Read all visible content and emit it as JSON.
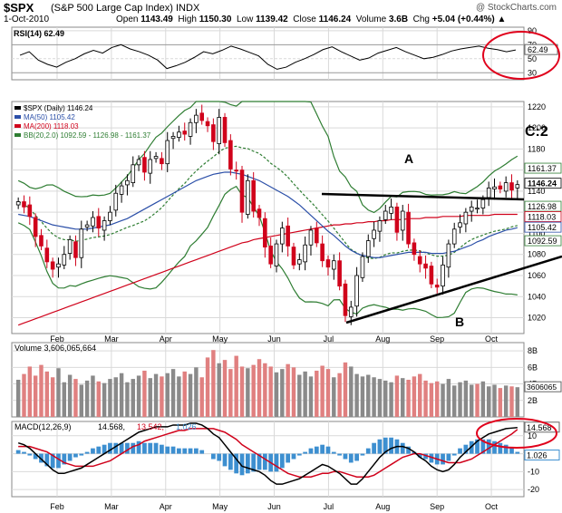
{
  "header": {
    "ticker": "$SPX",
    "full_name": "(S&P 500 Large Cap Index) INDX",
    "site": "@ StockCharts.com",
    "date": "1-Oct-2010",
    "open_label": "Open",
    "open": "1143.49",
    "high_label": "High",
    "high": "1150.30",
    "low_label": "Low",
    "low": "1139.42",
    "close_label": "Close",
    "close": "1146.24",
    "volume_label": "Volume",
    "volume": "3.6B",
    "chg_label": "Chg",
    "chg": "+5.04 (+0.44%)",
    "chg_arrow": "▲"
  },
  "colors": {
    "up": "#000000",
    "down": "#d0021b",
    "ma50": "#2b4fa8",
    "ma200": "#d0021b",
    "bb": "#2e7d32",
    "grid": "#d9d9d9",
    "annot": "#e0001b",
    "macd_hist": "#3d8fd0",
    "vol_up": "#8a8a8a",
    "vol_down": "#e08080"
  },
  "chart_data": [
    {
      "type": "line",
      "title": "RSI(14) 62.49",
      "legend": [
        "RSI(14) 62.49"
      ],
      "y_ticks": [
        "90",
        "70",
        "50",
        "30"
      ],
      "ylim": [
        20,
        95
      ],
      "last_value_label": "62.49",
      "values": [
        55,
        60,
        48,
        42,
        38,
        45,
        50,
        57,
        62,
        58,
        66,
        70,
        64,
        60,
        55,
        48,
        36,
        40,
        45,
        52,
        60,
        57,
        62,
        68,
        64,
        59,
        54,
        42,
        35,
        38,
        45,
        50,
        56,
        63,
        67,
        60,
        54,
        48,
        51,
        58,
        62,
        66,
        60,
        55,
        50,
        52,
        56,
        61,
        64,
        66,
        68,
        65,
        63,
        60,
        62.49
      ]
    },
    {
      "type": "candlestick",
      "title": "$SPX (Daily) 1146.24",
      "legend": [
        "$SPX (Daily) 1146.24",
        "MA(50) 1105.42",
        "MA(200) 1118.03",
        "BB(20,2.0) 1092.59 - 1126.98 - 1161.37"
      ],
      "x_tick_labels": [
        "Feb",
        "Mar",
        "Apr",
        "May",
        "Jun",
        "Jul",
        "Aug",
        "Sep",
        "Oct"
      ],
      "y_ticks": [
        "1220",
        "1200",
        "1180",
        "1160",
        "1140",
        "1120",
        "1100",
        "1080",
        "1060",
        "1040",
        "1020"
      ],
      "ylim": [
        1005,
        1225
      ],
      "price_labels": [
        "1161.37",
        "1146.24",
        "1126.98",
        "1118.03",
        "1105.42",
        "1092.59"
      ],
      "annotations": [
        "A",
        "B",
        "C:2"
      ],
      "close": [
        1130,
        1125,
        1116,
        1097,
        1088,
        1073,
        1066,
        1071,
        1080,
        1094,
        1077,
        1104,
        1108,
        1115,
        1105,
        1112,
        1120,
        1138,
        1145,
        1150,
        1165,
        1170,
        1158,
        1170,
        1173,
        1166,
        1188,
        1192,
        1196,
        1194,
        1205,
        1212,
        1207,
        1202,
        1187,
        1210,
        1186,
        1161,
        1159,
        1120,
        1150,
        1121,
        1115,
        1087,
        1071,
        1090,
        1105,
        1088,
        1070,
        1075,
        1089,
        1103,
        1091,
        1074,
        1068,
        1074,
        1050,
        1022,
        1030,
        1060,
        1078,
        1093,
        1103,
        1112,
        1121,
        1125,
        1101,
        1121,
        1090,
        1080,
        1071,
        1067,
        1052,
        1049,
        1070,
        1090,
        1104,
        1110,
        1120,
        1125,
        1124,
        1132,
        1143,
        1144,
        1142,
        1148,
        1141,
        1146.24
      ],
      "ma50": [
        1118,
        1117,
        1116,
        1114,
        1112,
        1110,
        1108,
        1107,
        1106,
        1105,
        1104,
        1104,
        1104,
        1105,
        1106,
        1107,
        1108,
        1110,
        1112,
        1114,
        1117,
        1120,
        1123,
        1126,
        1129,
        1132,
        1135,
        1138,
        1141,
        1144,
        1147,
        1150,
        1152,
        1154,
        1156,
        1157,
        1158,
        1158,
        1157,
        1156,
        1154,
        1152,
        1150,
        1147,
        1144,
        1141,
        1138,
        1135,
        1131,
        1127,
        1122,
        1117,
        1112,
        1107,
        1102,
        1098,
        1093,
        1088,
        1084,
        1081,
        1079,
        1078,
        1077,
        1077,
        1078,
        1079,
        1080,
        1081,
        1082,
        1082,
        1082,
        1082,
        1081,
        1081,
        1081,
        1082,
        1083,
        1085,
        1087,
        1089,
        1092,
        1094,
        1097,
        1099,
        1101,
        1103,
        1104,
        1105.42
      ],
      "ma200": [
        1013,
        1015,
        1017,
        1019,
        1021,
        1023,
        1025,
        1027,
        1029,
        1031,
        1033,
        1035,
        1037,
        1039,
        1041,
        1043,
        1045,
        1047,
        1049,
        1051,
        1053,
        1055,
        1057,
        1059,
        1061,
        1063,
        1065,
        1067,
        1069,
        1071,
        1073,
        1075,
        1077,
        1079,
        1081,
        1083,
        1085,
        1087,
        1089,
        1091,
        1092,
        1094,
        1095,
        1096,
        1097,
        1098,
        1099,
        1100,
        1101,
        1102,
        1103,
        1104,
        1105,
        1106,
        1107,
        1108,
        1108,
        1109,
        1109,
        1110,
        1110,
        1111,
        1111,
        1112,
        1112,
        1113,
        1113,
        1113,
        1114,
        1114,
        1114,
        1115,
        1115,
        1115,
        1116,
        1116,
        1116,
        1116,
        1117,
        1117,
        1117,
        1117,
        1117,
        1118,
        1118,
        1118,
        1118,
        1118.03
      ]
    },
    {
      "type": "bar",
      "title": "Volume 3,606,065,664",
      "legend": [
        "Volume 3,606,065,664"
      ],
      "y_ticks": [
        "8B",
        "6B",
        "4B",
        "2B"
      ],
      "ylim": [
        0,
        9
      ],
      "last_value_label": "3606065",
      "values": [
        4.5,
        5.2,
        6.1,
        5.0,
        6.3,
        5.5,
        4.8,
        5.9,
        4.2,
        5.1,
        4.6,
        3.9,
        4.4,
        5.0,
        4.3,
        4.1,
        4.6,
        4.8,
        5.3,
        4.2,
        4.6,
        5.0,
        5.6,
        4.7,
        5.2,
        4.9,
        5.3,
        5.8,
        4.9,
        5.5,
        5.2,
        6.0,
        4.8,
        7.2,
        8.1,
        6.5,
        6.9,
        5.8,
        7.4,
        6.1,
        5.9,
        6.3,
        7.0,
        6.5,
        6.1,
        5.4,
        5.8,
        6.4,
        6.0,
        5.1,
        5.5,
        4.9,
        5.6,
        6.2,
        5.8,
        4.8,
        5.3,
        6.6,
        6.1,
        5.2,
        4.9,
        5.1,
        4.8,
        4.6,
        4.4,
        4.2,
        5.0,
        4.7,
        4.5,
        4.9,
        5.2,
        4.4,
        4.1,
        4.3,
        4.0,
        4.6,
        3.8,
        4.2,
        4.4,
        3.9,
        4.0,
        4.3,
        3.7,
        3.9,
        3.5,
        3.8,
        3.7,
        3.6
      ]
    },
    {
      "type": "line",
      "title": "MACD(12,26,9) 14.568, 13.542, 1.026",
      "legend_name": "MACD(12,26,9)",
      "legend_values": [
        "14.568",
        "13.542",
        "1.026"
      ],
      "y_ticks": [
        "10",
        "0",
        "-10",
        "-20"
      ],
      "ylim": [
        -24,
        18
      ],
      "last_value_labels": [
        "14.568",
        "1.026"
      ],
      "macd": [
        6,
        5,
        3,
        0,
        -3,
        -6,
        -9,
        -11,
        -11,
        -10,
        -9,
        -8,
        -6,
        -4,
        -2,
        0,
        2,
        4,
        6,
        8,
        10,
        12,
        13,
        14,
        15,
        15,
        15,
        16,
        16,
        16,
        17,
        17,
        16,
        14,
        11,
        9,
        5,
        1,
        -3,
        -7,
        -8,
        -9,
        -10,
        -12,
        -15,
        -17,
        -17,
        -16,
        -15,
        -14,
        -12,
        -10,
        -8,
        -6,
        -7,
        -9,
        -11,
        -14,
        -17,
        -17,
        -14,
        -10,
        -6,
        -2,
        1,
        3,
        4,
        4,
        3,
        1,
        -2,
        -4,
        -7,
        -9,
        -10,
        -9,
        -6,
        -2,
        1,
        4,
        7,
        9,
        11,
        12,
        13,
        14,
        14.3,
        14.568
      ],
      "signal": [
        4,
        4,
        4,
        3,
        2,
        1,
        -1,
        -3,
        -5,
        -6,
        -7,
        -7,
        -7,
        -7,
        -6,
        -5,
        -4,
        -2,
        0,
        2,
        4,
        5,
        7,
        8,
        9,
        10,
        11,
        12,
        13,
        13,
        14,
        14,
        14,
        14,
        14,
        13,
        12,
        10,
        8,
        5,
        3,
        1,
        -1,
        -3,
        -5,
        -7,
        -9,
        -11,
        -12,
        -13,
        -13,
        -13,
        -12,
        -11,
        -11,
        -10,
        -10,
        -11,
        -12,
        -13,
        -13,
        -13,
        -12,
        -10,
        -8,
        -6,
        -4,
        -2,
        -1,
        0,
        0,
        -1,
        -2,
        -3,
        -4,
        -5,
        -5,
        -5,
        -4,
        -3,
        -1,
        1,
        3,
        5,
        7,
        9,
        11,
        13.542
      ]
    }
  ]
}
